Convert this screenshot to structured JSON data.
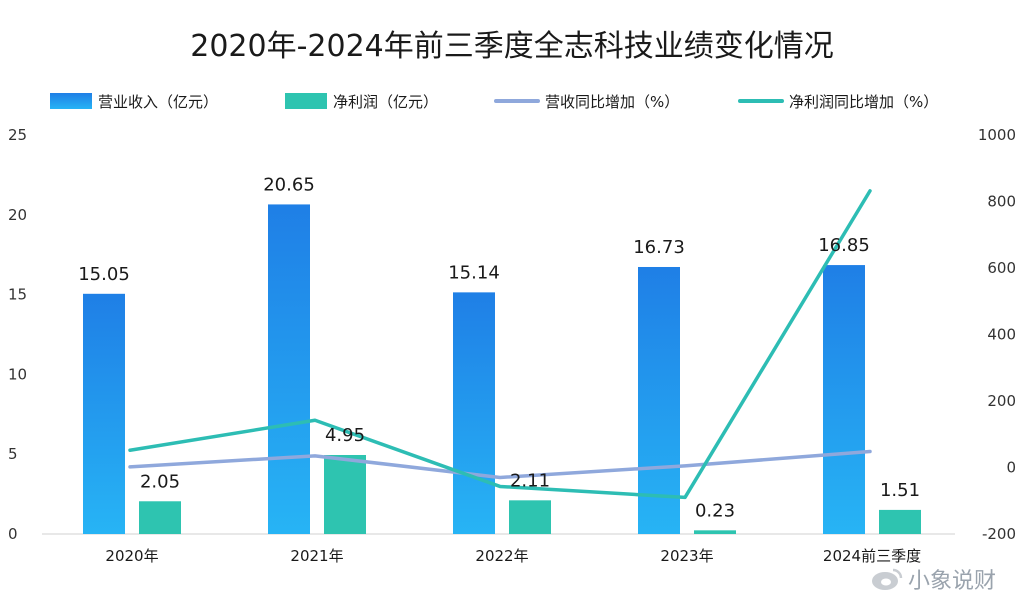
{
  "chart_data": {
    "type": "bar+line",
    "title": "2020年-2024年前三季度全志科技业绩变化情况",
    "categories": [
      "2020年",
      "2021年",
      "2022年",
      "2023年",
      "2024前三季度"
    ],
    "y_left": {
      "min": 0,
      "max": 25,
      "ticks": [
        0,
        5,
        10,
        15,
        20,
        25
      ]
    },
    "y_right": {
      "min": -200,
      "max": 1000,
      "ticks": [
        -200,
        0,
        200,
        400,
        600,
        800,
        1000
      ]
    },
    "series": [
      {
        "name": "营业收入（亿元）",
        "type": "bar",
        "axis": "left",
        "values": [
          15.05,
          20.65,
          15.14,
          16.73,
          16.85
        ],
        "labels": [
          "15.05",
          "20.65",
          "15.14",
          "16.73",
          "16.85"
        ],
        "color": "#1a7de0"
      },
      {
        "name": "净利润（亿元）",
        "type": "bar",
        "axis": "left",
        "values": [
          2.05,
          4.95,
          2.11,
          0.23,
          1.51
        ],
        "labels": [
          "2.05",
          "4.95",
          "2.11",
          "0.23",
          "1.51"
        ],
        "color": "#2ec4b0"
      },
      {
        "name": "营收同比增加（%）",
        "type": "line",
        "axis": "right",
        "values": [
          2,
          35,
          -30,
          5,
          48
        ],
        "color": "#8fa8dc"
      },
      {
        "name": "净利润同比增加（%）",
        "type": "line",
        "axis": "right",
        "values": [
          52,
          142,
          -57,
          -90,
          832
        ],
        "color": "#2dbdb4"
      }
    ],
    "legend_position": "top"
  },
  "watermark": "小象说财",
  "colors": {
    "revenue_top": "#2a9cf2",
    "revenue_bottom": "#0b5fd4",
    "profit": "#2ec4b0",
    "revenue_line": "#8fa8dc",
    "profit_line": "#2dbdb4",
    "text": "#1a1a1a",
    "axis": "#d0d0d0"
  }
}
